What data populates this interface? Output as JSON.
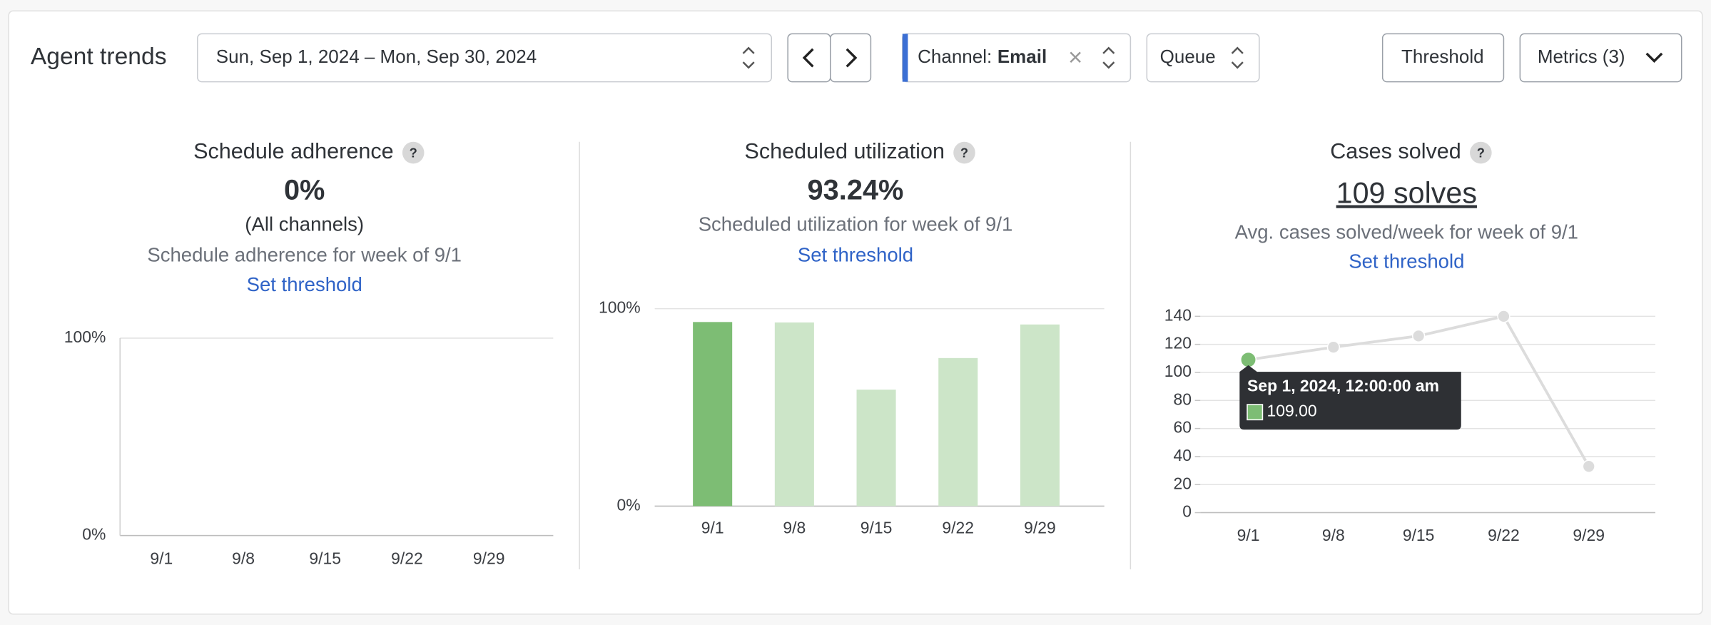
{
  "header": {
    "title": "Agent trends",
    "date_range": "Sun, Sep 1, 2024 – Mon, Sep 30, 2024",
    "channel": {
      "label": "Channel:",
      "value": "Email"
    },
    "queue": "Queue",
    "threshold": "Threshold",
    "metrics": "Metrics (3)"
  },
  "panels": [
    {
      "title": "Schedule adherence",
      "help": "?",
      "value": "0%",
      "scope": "(All channels)",
      "description": "Schedule adherence for week of 9/1",
      "link": "Set threshold"
    },
    {
      "title": "Scheduled utilization",
      "help": "?",
      "value": "93.24%",
      "description": "Scheduled utilization for week of 9/1",
      "link": "Set threshold"
    },
    {
      "title": "Cases solved",
      "help": "?",
      "value": "109 solves",
      "description": "Avg. cases solved/week for week of 9/1",
      "link": "Set threshold"
    }
  ],
  "chart_data": [
    {
      "type": "bar",
      "categories": [
        "9/1",
        "9/8",
        "9/15",
        "9/22",
        "9/29"
      ],
      "values": [
        0,
        0,
        0,
        0,
        0
      ],
      "colors": [
        "#7dbd74",
        "#cce5c8",
        "#cce5c8",
        "#cce5c8",
        "#cce5c8"
      ],
      "ylim": [
        0,
        100
      ],
      "yticks": [
        {
          "value": 0,
          "label": "0%"
        },
        {
          "value": 100,
          "label": "100%"
        }
      ],
      "grid": true
    },
    {
      "type": "bar",
      "categories": [
        "9/1",
        "9/8",
        "9/15",
        "9/22",
        "9/29"
      ],
      "values": [
        93.24,
        93,
        59,
        75,
        92
      ],
      "colors": [
        "#7dbd74",
        "#cce5c8",
        "#cce5c8",
        "#cce5c8",
        "#cce5c8"
      ],
      "ylim": [
        0,
        100
      ],
      "yticks": [
        {
          "value": 0,
          "label": "0%"
        },
        {
          "value": 100,
          "label": "100%"
        }
      ],
      "grid": true
    },
    {
      "type": "line",
      "categories": [
        "9/1",
        "9/8",
        "9/15",
        "9/22",
        "9/29"
      ],
      "values": [
        109,
        118,
        126,
        140,
        33
      ],
      "color": "#dcdcdc",
      "point_colors": [
        "#7dbd74",
        "#dcdcdc",
        "#dcdcdc",
        "#dcdcdc",
        "#dcdcdc"
      ],
      "ylim": [
        0,
        140
      ],
      "yticks": [
        0,
        20,
        40,
        60,
        80,
        100,
        120,
        140
      ],
      "grid": true,
      "tooltip": {
        "title": "Sep 1, 2024, 12:00:00 am",
        "value": "109.00"
      }
    }
  ]
}
